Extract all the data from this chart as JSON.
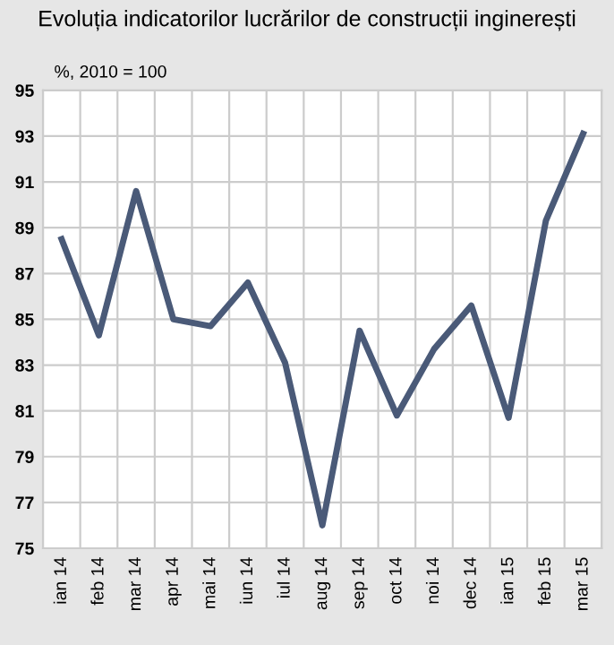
{
  "chart_data": {
    "type": "line",
    "title": "Evoluția indicatorilor lucrărilor de construcții inginerești",
    "subtitle": "%, 2010 = 100",
    "categories": [
      "ian 14",
      "feb 14",
      "mar 14",
      "apr 14",
      "mai 14",
      "iun 14",
      "iul 14",
      "aug 14",
      "sep 14",
      "oct 14",
      "noi 14",
      "dec 14",
      "ian 15",
      "feb 15",
      "mar 15"
    ],
    "series": [
      {
        "color": "#4a5a78",
        "values": [
          88.5,
          84.3,
          90.6,
          85.0,
          84.7,
          86.6,
          83.1,
          76.0,
          84.5,
          80.8,
          83.7,
          85.6,
          80.7,
          89.3,
          93.1
        ]
      }
    ],
    "ylim": [
      75,
      95
    ],
    "yticks": [
      75,
      77,
      79,
      81,
      83,
      85,
      87,
      89,
      91,
      93,
      95
    ],
    "grid": true,
    "marker": "none",
    "line_style": "solid",
    "legend": false
  }
}
